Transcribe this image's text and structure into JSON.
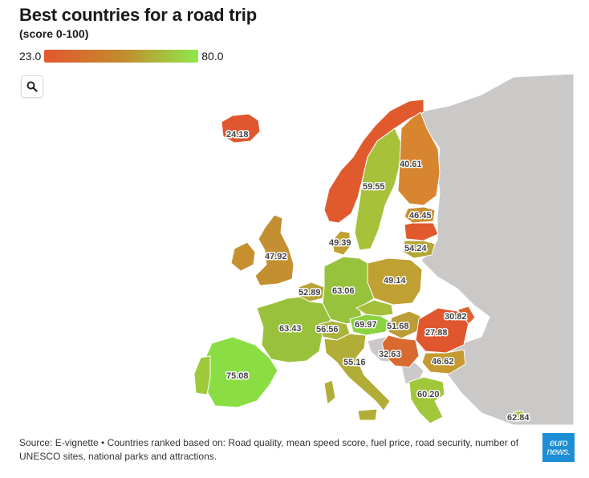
{
  "header": {
    "title": "Best countries for a road trip",
    "subtitle": "(score 0-100)"
  },
  "legend": {
    "min_label": "23.0",
    "max_label": "80.0",
    "min_color": "#e4572e",
    "mid_color": "#c48a2c",
    "max_color": "#8ee84a"
  },
  "controls": {
    "search_icon": "magnifier-icon"
  },
  "map": {
    "countries": [
      {
        "name": "Iceland",
        "score": 24.18,
        "label": "24.18",
        "color": "#e0562f"
      },
      {
        "name": "Norway",
        "score": 27.0,
        "label": "",
        "color": "#e05a2e"
      },
      {
        "name": "Sweden",
        "score": 59.55,
        "label": "59.55",
        "color": "#a7c23a"
      },
      {
        "name": "Finland",
        "score": 40.61,
        "label": "40.61",
        "color": "#d7852e"
      },
      {
        "name": "Estonia",
        "score": 46.45,
        "label": "46.45",
        "color": "#c98f30"
      },
      {
        "name": "Latvia",
        "score": 30.0,
        "label": "",
        "color": "#e05a2e"
      },
      {
        "name": "Lithuania",
        "score": 54.24,
        "label": "54.24",
        "color": "#b5a637"
      },
      {
        "name": "Denmark",
        "score": 49.39,
        "label": "49.39",
        "color": "#c0a033"
      },
      {
        "name": "United Kingdom",
        "score": 47.92,
        "label": "47.92",
        "color": "#c48f31"
      },
      {
        "name": "Ireland",
        "score": 47.0,
        "label": "",
        "color": "#c7902f"
      },
      {
        "name": "Poland",
        "score": 49.14,
        "label": "49.14",
        "color": "#c0a033"
      },
      {
        "name": "Belgium",
        "score": 52.89,
        "label": "52.89",
        "color": "#b6a435"
      },
      {
        "name": "Germany",
        "score": 63.06,
        "label": "63.06",
        "color": "#97c23c"
      },
      {
        "name": "France",
        "score": 63.43,
        "label": "63.43",
        "color": "#9ac13c"
      },
      {
        "name": "Switzerland",
        "score": 56.56,
        "label": "56.56",
        "color": "#aab53a"
      },
      {
        "name": "Austria",
        "score": 69.97,
        "label": "69.97",
        "color": "#8bd340"
      },
      {
        "name": "Hungary",
        "score": 51.68,
        "label": "51.68",
        "color": "#bc9c34"
      },
      {
        "name": "Romania",
        "score": 27.88,
        "label": "27.88",
        "color": "#e0562e"
      },
      {
        "name": "Moldova",
        "score": 30.82,
        "label": "30.82",
        "color": "#dd642f"
      },
      {
        "name": "Serbia",
        "score": 32.63,
        "label": "32.63",
        "color": "#d86a30"
      },
      {
        "name": "Bulgaria",
        "score": 46.62,
        "label": "46.62",
        "color": "#c59a31"
      },
      {
        "name": "Italy",
        "score": 55.16,
        "label": "55.16",
        "color": "#b1ad37"
      },
      {
        "name": "Spain",
        "score": 75.08,
        "label": "75.08",
        "color": "#8ade44"
      },
      {
        "name": "Portugal",
        "score": 62.0,
        "label": "",
        "color": "#9fc93b"
      },
      {
        "name": "Greece",
        "score": 60.2,
        "label": "60.20",
        "color": "#a1c73b"
      },
      {
        "name": "Cyprus",
        "score": 62.84,
        "label": "62.84",
        "color": "#a0c83b"
      }
    ]
  },
  "footer": {
    "source": "Source: E-vignette • Countries ranked based on: Road quality, mean speed score, fuel price, road security, number of UNESCO sites, national parks and attractions.",
    "logo_top": "euro",
    "logo_bottom": "news."
  }
}
